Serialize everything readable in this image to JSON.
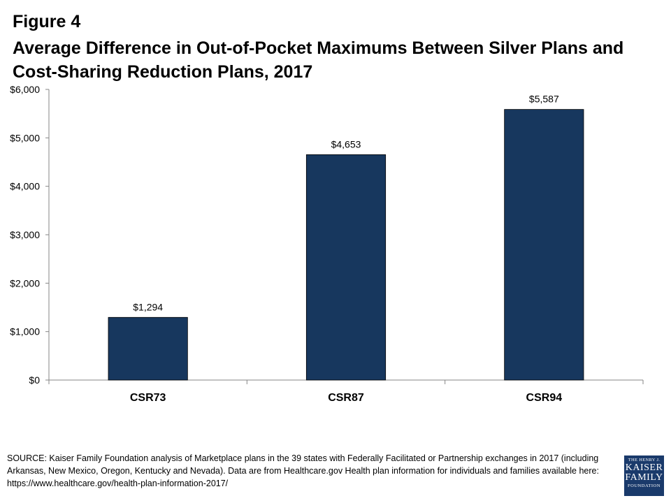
{
  "figure_label": "Figure 4",
  "title": "Average Difference in Out-of-Pocket Maximums Between Silver Plans and Cost-Sharing Reduction Plans, 2017",
  "chart_data": {
    "type": "bar",
    "categories": [
      "CSR73",
      "CSR87",
      "CSR94"
    ],
    "values": [
      1294,
      4653,
      5587
    ],
    "data_labels": [
      "$1,294",
      "$4,653",
      "$5,587"
    ],
    "yticks": [
      0,
      1000,
      2000,
      3000,
      4000,
      5000,
      6000
    ],
    "ytick_labels": [
      "$0",
      "$1,000",
      "$2,000",
      "$3,000",
      "$4,000",
      "$5,000",
      "$6,000"
    ],
    "ylim": [
      0,
      6000
    ],
    "bar_color": "#17375e",
    "grid": false,
    "legend": "none"
  },
  "source": "SOURCE: Kaiser Family Foundation analysis of Marketplace plans in the 39 states with Federally Facilitated or Partnership exchanges in 2017 (including Arkansas, New Mexico, Oregon, Kentucky and Nevada).  Data are from Healthcare.gov Health plan information for individuals and families available here: https://www.healthcare.gov/health-plan-information-2017/",
  "logo": {
    "line1": "THE HENRY J.",
    "line2": "KAISER",
    "line3": "FAMILY",
    "line4": "FOUNDATION"
  }
}
